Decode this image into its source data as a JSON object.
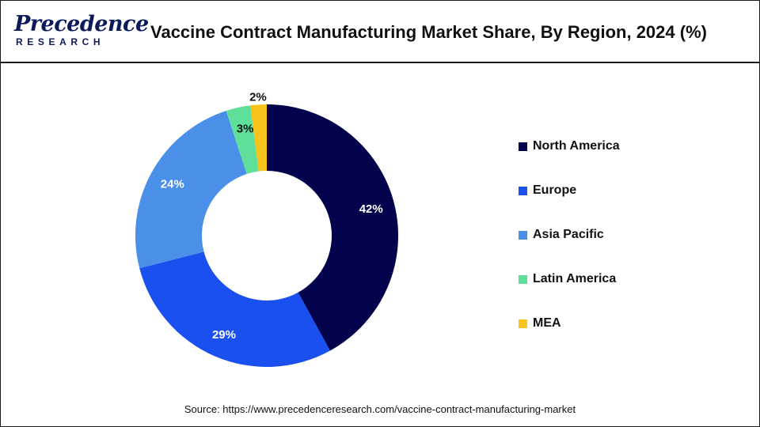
{
  "brand": {
    "name": "Precedence",
    "tagline": "RESEARCH"
  },
  "header": {
    "title": "Vaccine Contract Manufacturing Market Share, By Region, 2024 (%)"
  },
  "chart_data": {
    "type": "pie",
    "variant": "donut",
    "title": "Vaccine Contract Manufacturing Market Share, By Region, 2024 (%)",
    "categories": [
      "North America",
      "Europe",
      "Asia Pacific",
      "Latin America",
      "MEA"
    ],
    "values": [
      42,
      29,
      24,
      3,
      2
    ],
    "labels": [
      "42%",
      "29%",
      "24%",
      "3%",
      "2%"
    ],
    "colors": [
      "#03034d",
      "#1a4ff0",
      "#4a8fe8",
      "#5ee09a",
      "#f7c21a"
    ],
    "label_colors": [
      "#ffffff",
      "#ffffff",
      "#ffffff",
      "#111111",
      "#111111"
    ],
    "legend_position": "right"
  },
  "source": "Source: https://www.precedenceresearch.com/vaccine-contract-manufacturing-market"
}
